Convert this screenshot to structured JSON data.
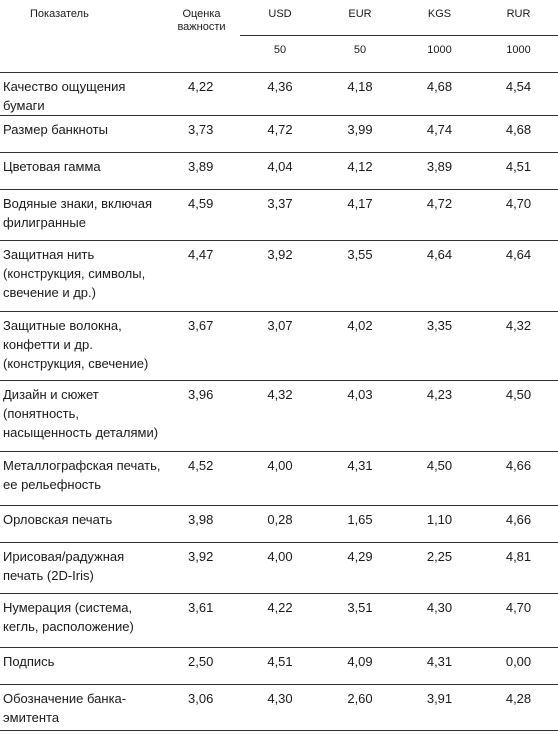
{
  "header": {
    "indicator": "Показатель",
    "importance_line1": "Оценка",
    "importance_line2": "важности",
    "currencies": [
      {
        "code": "USD",
        "denomination": "50"
      },
      {
        "code": "EUR",
        "denomination": "50"
      },
      {
        "code": "KGS",
        "denomination": "1000"
      },
      {
        "code": "RUR",
        "denomination": "1000"
      }
    ]
  },
  "rows": [
    {
      "label": "Качество ощущения бумаги",
      "importance": "4,22",
      "usd": "4,36",
      "eur": "4,18",
      "kgs": "4,68",
      "rur": "4,54"
    },
    {
      "label": "Размер банкноты",
      "importance": "3,73",
      "usd": "4,72",
      "eur": "3,99",
      "kgs": "4,74",
      "rur": "4,68"
    },
    {
      "label": "Цветовая гамма",
      "importance": "3,89",
      "usd": "4,04",
      "eur": "4,12",
      "kgs": "3,89",
      "rur": "4,51"
    },
    {
      "label": "Водяные знаки, включая филигранные",
      "importance": "4,59",
      "usd": "3,37",
      "eur": "4,17",
      "kgs": "4,72",
      "rur": "4,70"
    },
    {
      "label": "Защитная нить (конструкция, символы, свечение и др.)",
      "importance": "4,47",
      "usd": "3,92",
      "eur": "3,55",
      "kgs": "4,64",
      "rur": "4,64"
    },
    {
      "label": "Защитные волокна, конфетти и др. (конструкция, свечение)",
      "importance": "3,67",
      "usd": "3,07",
      "eur": "4,02",
      "kgs": "3,35",
      "rur": "4,32"
    },
    {
      "label": "Дизайн и сюжет (понятность, насыщенность деталями)",
      "importance": "3,96",
      "usd": "4,32",
      "eur": "4,03",
      "kgs": "4,23",
      "rur": "4,50"
    },
    {
      "label": "Металлографская печать, ее рельефность",
      "importance": "4,52",
      "usd": "4,00",
      "eur": "4,31",
      "kgs": "4,50",
      "rur": "4,66"
    },
    {
      "label": "Орловская печать",
      "importance": "3,98",
      "usd": "0,28",
      "eur": "1,65",
      "kgs": "1,10",
      "rur": "4,66"
    },
    {
      "label": "Ирисовая/радужная печать (2D-Iris)",
      "importance": "3,92",
      "usd": "4,00",
      "eur": "4,29",
      "kgs": "2,25",
      "rur": "4,81"
    },
    {
      "label": "Нумерация (система, кегль, расположение)",
      "importance": "3,61",
      "usd": "4,22",
      "eur": "3,51",
      "kgs": "4,30",
      "rur": "4,70"
    },
    {
      "label": "Подпись",
      "importance": "2,50",
      "usd": "4,51",
      "eur": "4,09",
      "kgs": "4,31",
      "rur": "0,00"
    },
    {
      "label": "Обозначение банка-эмитента",
      "importance": "3,06",
      "usd": "4,30",
      "eur": "2,60",
      "kgs": "3,91",
      "rur": "4,28"
    }
  ]
}
